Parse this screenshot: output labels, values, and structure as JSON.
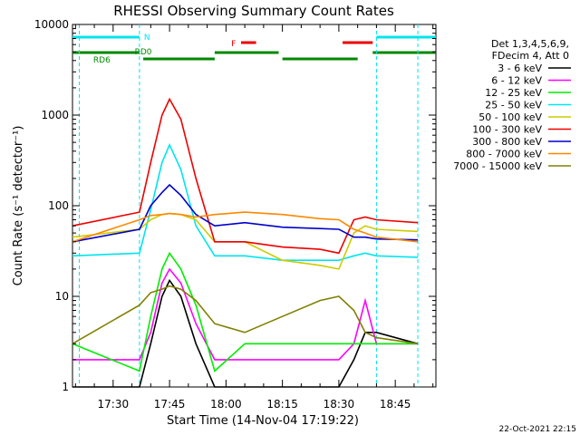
{
  "chart_data": {
    "type": "line",
    "title": "RHESSI Observing Summary Count Rates",
    "xlabel": "Start Time (14-Nov-04 17:19:22)",
    "ylabel": "Count Rate (s⁻¹ detector⁻¹)",
    "y_scale": "log",
    "ylim": [
      1,
      10000
    ],
    "xlim_minutes": [
      17.32,
      18.93
    ],
    "x_ticks": [
      "17:30",
      "17:45",
      "18:00",
      "18:15",
      "18:30",
      "18:45"
    ],
    "y_ticks": [
      "1",
      "10",
      "100",
      "1000",
      "10000"
    ],
    "timestamp": "22-Oct-2021 22:15",
    "legend": {
      "header": [
        "Det 1,3,4,5,6,9,",
        "FDecim 4, Att 0"
      ],
      "placement": "right"
    },
    "flags": [
      {
        "name": "N",
        "color": "#00e5ee"
      },
      {
        "name": "RD0",
        "color": "#008800"
      },
      {
        "name": "RD6",
        "color": "#008800"
      },
      {
        "name": "F",
        "color": "#ee0000"
      }
    ],
    "series": [
      {
        "name": "3 - 6 keV",
        "color": "#000000",
        "times": [
          "17:19",
          "17:37",
          "17:40",
          "17:43",
          "17:45",
          "17:48",
          "17:52",
          "17:57",
          "18:05",
          "18:15",
          "18:25",
          "18:30",
          "18:34",
          "18:37",
          "18:40",
          "18:51"
        ],
        "values": [
          1,
          1,
          3,
          10,
          15,
          10,
          3,
          1,
          1,
          1,
          1,
          1,
          2,
          4,
          4,
          3
        ]
      },
      {
        "name": "6 - 12 keV",
        "color": "#ff00ff",
        "times": [
          "17:19",
          "17:37",
          "17:40",
          "17:43",
          "17:45",
          "17:48",
          "17:52",
          "17:57",
          "18:05",
          "18:15",
          "18:25",
          "18:30",
          "18:34",
          "18:37",
          "18:40",
          "18:51"
        ],
        "values": [
          2,
          2,
          4,
          14,
          20,
          14,
          5,
          2,
          2,
          2,
          2,
          2,
          3,
          9,
          3,
          3
        ]
      },
      {
        "name": "12 - 25 keV",
        "color": "#00ee00",
        "times": [
          "17:19",
          "17:37",
          "17:40",
          "17:43",
          "17:45",
          "17:48",
          "17:52",
          "17:57",
          "18:05",
          "18:15",
          "18:25",
          "18:30",
          "18:34",
          "18:37",
          "18:40",
          "18:51"
        ],
        "values": [
          3,
          1.5,
          6,
          20,
          30,
          20,
          8,
          1.5,
          3,
          3,
          3,
          3,
          3,
          3,
          3,
          3
        ]
      },
      {
        "name": "25 - 50 keV",
        "color": "#00e5ee",
        "times": [
          "17:19",
          "17:37",
          "17:40",
          "17:43",
          "17:45",
          "17:48",
          "17:52",
          "17:57",
          "18:05",
          "18:15",
          "18:25",
          "18:30",
          "18:34",
          "18:37",
          "18:40",
          "18:51"
        ],
        "values": [
          28,
          30,
          90,
          300,
          470,
          250,
          60,
          28,
          28,
          25,
          25,
          25,
          28,
          30,
          28,
          27
        ]
      },
      {
        "name": "50 - 100 keV",
        "color": "#cccc00",
        "times": [
          "17:19",
          "17:37",
          "17:40",
          "17:43",
          "17:45",
          "17:48",
          "17:52",
          "17:57",
          "18:05",
          "18:15",
          "18:25",
          "18:30",
          "18:34",
          "18:37",
          "18:40",
          "18:51"
        ],
        "values": [
          45,
          55,
          70,
          80,
          82,
          80,
          70,
          40,
          40,
          25,
          22,
          20,
          50,
          60,
          55,
          52
        ]
      },
      {
        "name": "100 - 300 keV",
        "color": "#ee0000",
        "times": [
          "17:19",
          "17:37",
          "17:40",
          "17:43",
          "17:45",
          "17:48",
          "17:52",
          "17:57",
          "18:05",
          "18:15",
          "18:25",
          "18:30",
          "18:34",
          "18:37",
          "18:40",
          "18:51"
        ],
        "values": [
          60,
          85,
          300,
          1000,
          1500,
          900,
          200,
          40,
          40,
          35,
          33,
          30,
          70,
          75,
          70,
          65
        ]
      },
      {
        "name": "300 - 800 keV",
        "color": "#0000cc",
        "times": [
          "17:19",
          "17:37",
          "17:40",
          "17:43",
          "17:45",
          "17:48",
          "17:52",
          "17:57",
          "18:05",
          "18:15",
          "18:25",
          "18:30",
          "18:34",
          "18:37",
          "18:40",
          "18:51"
        ],
        "values": [
          40,
          55,
          100,
          140,
          170,
          130,
          80,
          60,
          65,
          58,
          56,
          55,
          45,
          45,
          43,
          42
        ]
      },
      {
        "name": "800 - 7000 keV",
        "color": "#ff8800",
        "times": [
          "17:19",
          "17:37",
          "17:40",
          "17:43",
          "17:45",
          "17:48",
          "17:52",
          "17:57",
          "18:05",
          "18:15",
          "18:25",
          "18:30",
          "18:34",
          "18:37",
          "18:40",
          "18:51"
        ],
        "values": [
          40,
          70,
          78,
          80,
          82,
          80,
          75,
          80,
          85,
          80,
          72,
          70,
          55,
          50,
          45,
          40
        ]
      },
      {
        "name": "7000 - 15000 keV",
        "color": "#808000",
        "times": [
          "17:19",
          "17:37",
          "17:40",
          "17:43",
          "17:45",
          "17:48",
          "17:52",
          "17:57",
          "18:05",
          "18:15",
          "18:25",
          "18:30",
          "18:34",
          "18:37",
          "18:40",
          "18:51"
        ],
        "values": [
          3,
          8,
          11,
          12,
          13,
          12,
          9,
          5,
          4,
          6,
          9,
          10,
          7,
          4,
          3.5,
          3
        ]
      }
    ]
  }
}
